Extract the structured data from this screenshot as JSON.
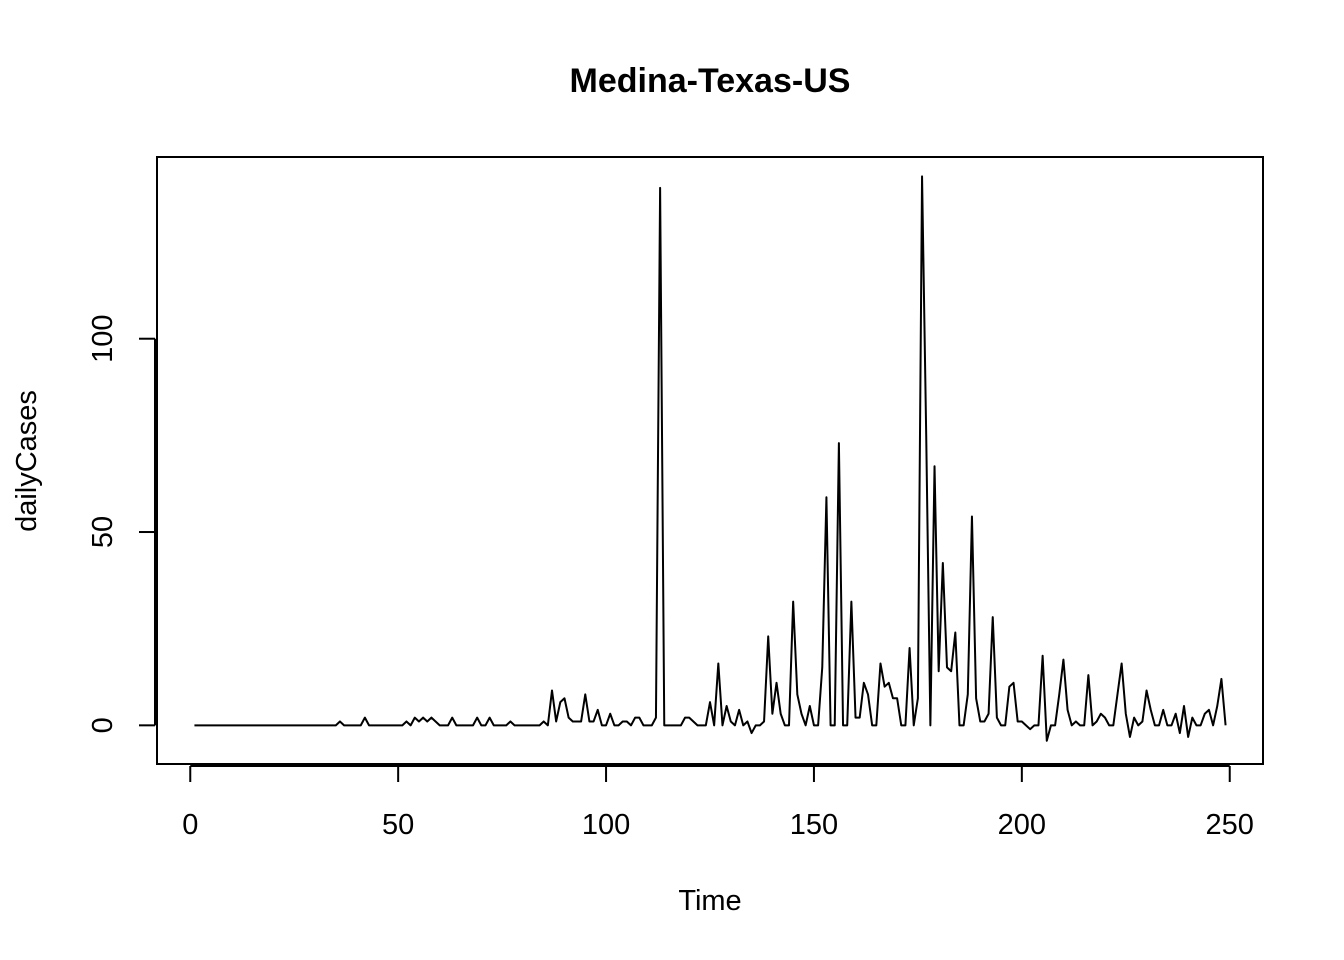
{
  "chart_data": {
    "type": "line",
    "title": "Medina-Texas-US",
    "xlabel": "Time",
    "ylabel": "dailyCases",
    "xlim": [
      -8,
      258
    ],
    "ylim": [
      -10,
      147
    ],
    "xticks": [
      0,
      50,
      100,
      150,
      200,
      250
    ],
    "yticks": [
      0,
      50,
      100
    ],
    "grid": false,
    "legend": "none",
    "line_color": "#000000",
    "x_start": 1,
    "values": [
      0,
      0,
      0,
      0,
      0,
      0,
      0,
      0,
      0,
      0,
      0,
      0,
      0,
      0,
      0,
      0,
      0,
      0,
      0,
      0,
      0,
      0,
      0,
      0,
      0,
      0,
      0,
      0,
      0,
      0,
      0,
      0,
      0,
      0,
      0,
      1,
      0,
      0,
      0,
      0,
      0,
      2,
      0,
      0,
      0,
      0,
      0,
      0,
      0,
      0,
      0,
      1,
      0,
      2,
      1,
      2,
      1,
      2,
      1,
      0,
      0,
      0,
      2,
      0,
      0,
      0,
      0,
      0,
      2,
      0,
      0,
      2,
      0,
      0,
      0,
      0,
      1,
      0,
      0,
      0,
      0,
      0,
      0,
      0,
      1,
      0,
      9,
      1,
      6,
      7,
      2,
      1,
      1,
      1,
      8,
      1,
      1,
      4,
      0,
      0,
      3,
      0,
      0,
      1,
      1,
      0,
      2,
      2,
      0,
      0,
      0,
      2,
      139,
      0,
      0,
      0,
      0,
      0,
      2,
      2,
      1,
      0,
      0,
      0,
      6,
      0,
      16,
      0,
      5,
      1,
      0,
      4,
      0,
      1,
      -2,
      0,
      0,
      1,
      23,
      3,
      11,
      3,
      0,
      0,
      32,
      8,
      3,
      0,
      5,
      0,
      0,
      15,
      59,
      0,
      0,
      73,
      0,
      0,
      32,
      2,
      2,
      11,
      8,
      0,
      0,
      16,
      10,
      11,
      7,
      7,
      0,
      0,
      20,
      0,
      7,
      142,
      75,
      0,
      67,
      14,
      42,
      15,
      14,
      24,
      0,
      0,
      8,
      54,
      7,
      1,
      1,
      3,
      28,
      2,
      0,
      0,
      10,
      11,
      1,
      1,
      0,
      -1,
      0,
      0,
      18,
      -4,
      0,
      0,
      8,
      17,
      4,
      0,
      1,
      0,
      0,
      13,
      0,
      1,
      3,
      2,
      0,
      0,
      8,
      16,
      3,
      -3,
      2,
      0,
      1,
      9,
      4,
      0,
      0,
      4,
      0,
      0,
      3,
      -2,
      5,
      -3,
      2,
      0,
      0,
      3,
      4,
      0,
      5,
      12,
      0
    ]
  }
}
